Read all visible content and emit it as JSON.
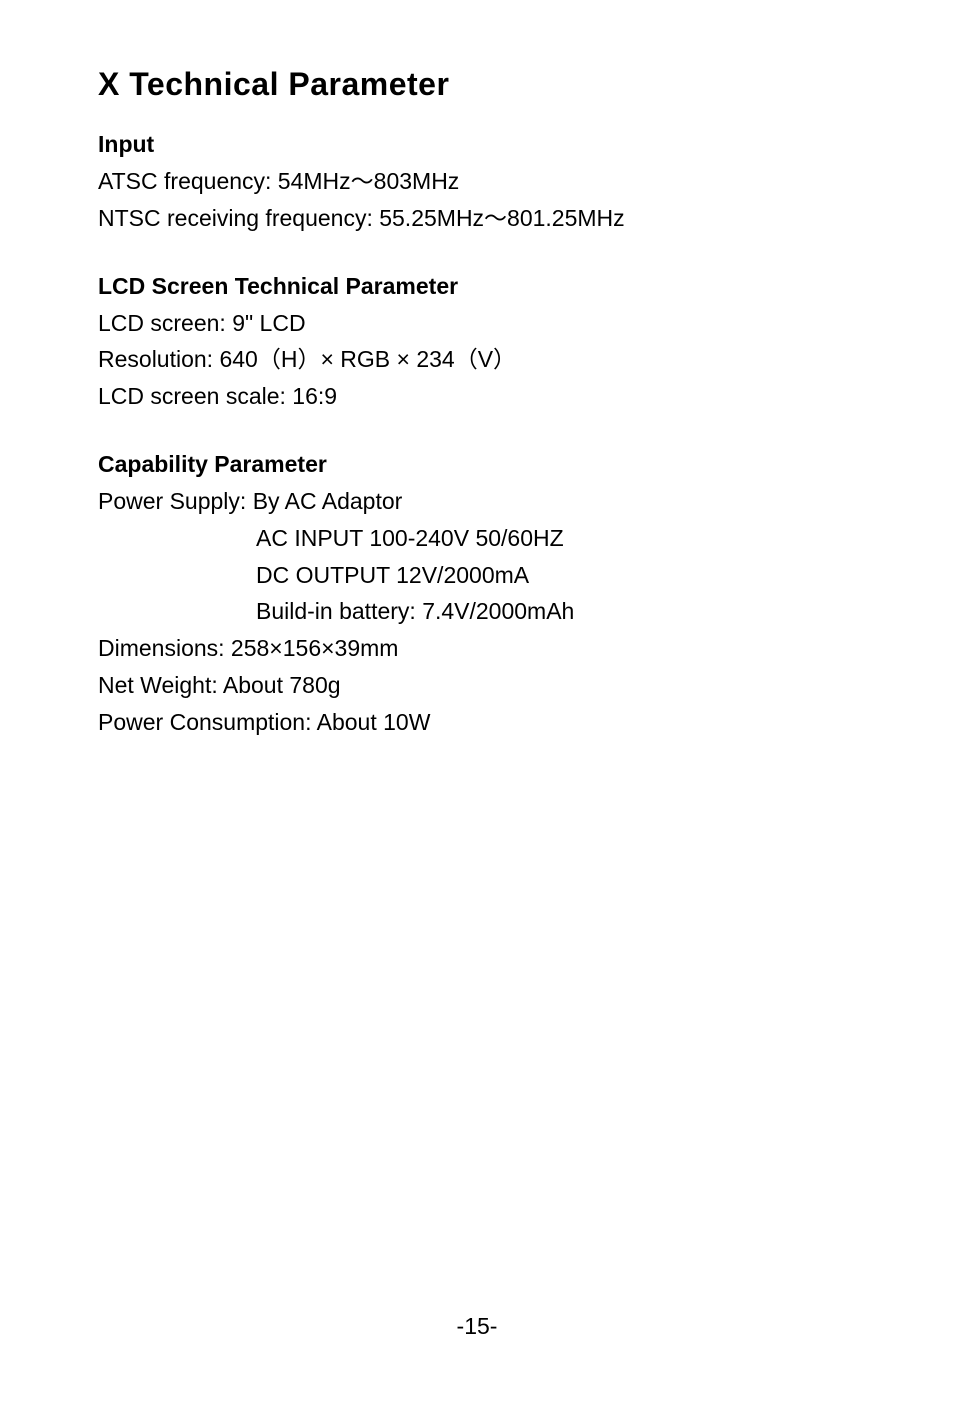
{
  "title": "X  Technical Parameter",
  "sections": {
    "input": {
      "heading": "Input",
      "lines": [
        "ATSC frequency: 54MHz～803MHz",
        "NTSC receiving frequency: 55.25MHz～801.25MHz"
      ]
    },
    "lcd": {
      "heading": "LCD Screen Technical Parameter",
      "lines": [
        "LCD screen: 9\" LCD",
        "Resolution: 640（H）× RGB × 234（V）",
        "LCD screen scale: 16:9"
      ]
    },
    "capability": {
      "heading": "Capability Parameter",
      "lines": [
        "Power Supply: By AC Adaptor",
        "AC INPUT 100-240V  50/60HZ",
        "DC OUTPUT  12V/2000mA",
        "Build-in battery: 7.4V/2000mAh",
        "Dimensions: 258×156×39mm",
        "Net Weight: About 780g",
        "Power Consumption: About 10W"
      ]
    }
  },
  "pageNumber": "-15-"
}
